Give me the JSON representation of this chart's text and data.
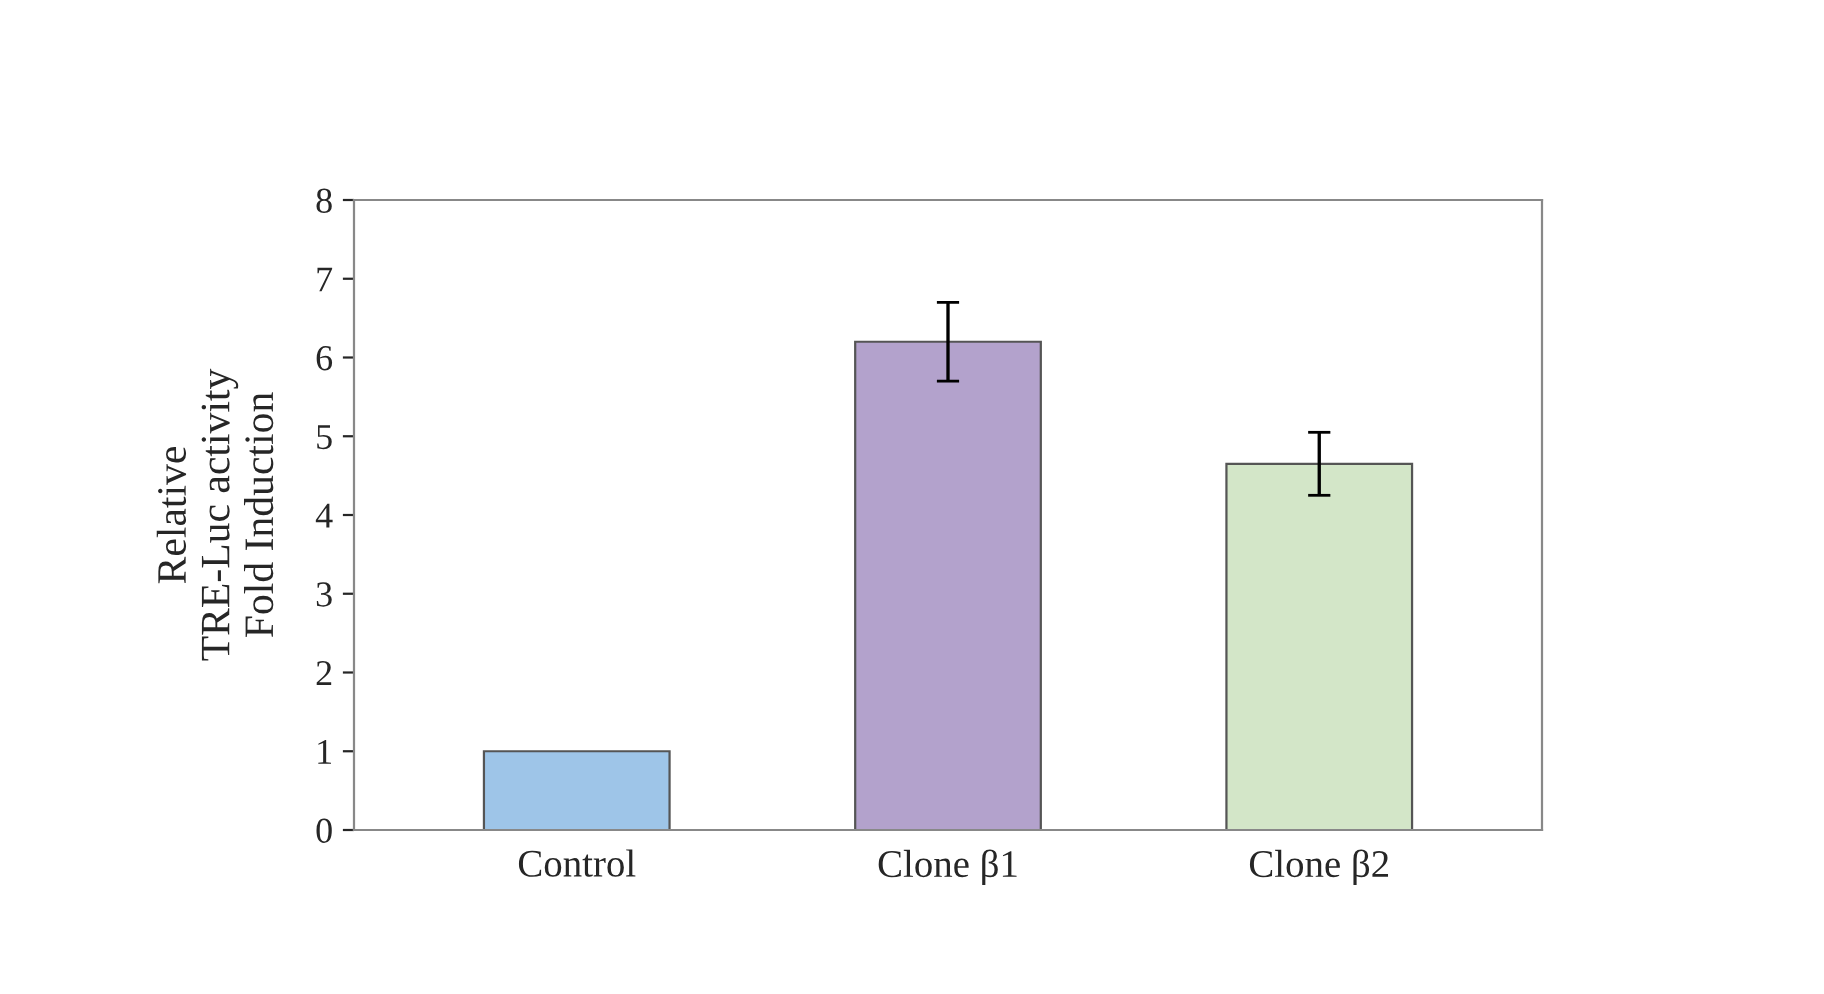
{
  "chart_data": {
    "type": "bar",
    "ylabel": "Relative\nTRE-Luc activity\nFold Induction",
    "categories": [
      "Control",
      "Clone β1",
      "Clone β2"
    ],
    "values": [
      1.0,
      6.2,
      4.65
    ],
    "errors": [
      null,
      0.5,
      0.4
    ],
    "colors": [
      "#9ec5e8",
      "#b3a2cc",
      "#d3e6c8"
    ],
    "ylim": [
      0,
      8
    ],
    "yticks": [
      0,
      1,
      2,
      3,
      4,
      5,
      6,
      7,
      8
    ],
    "grid": false
  }
}
